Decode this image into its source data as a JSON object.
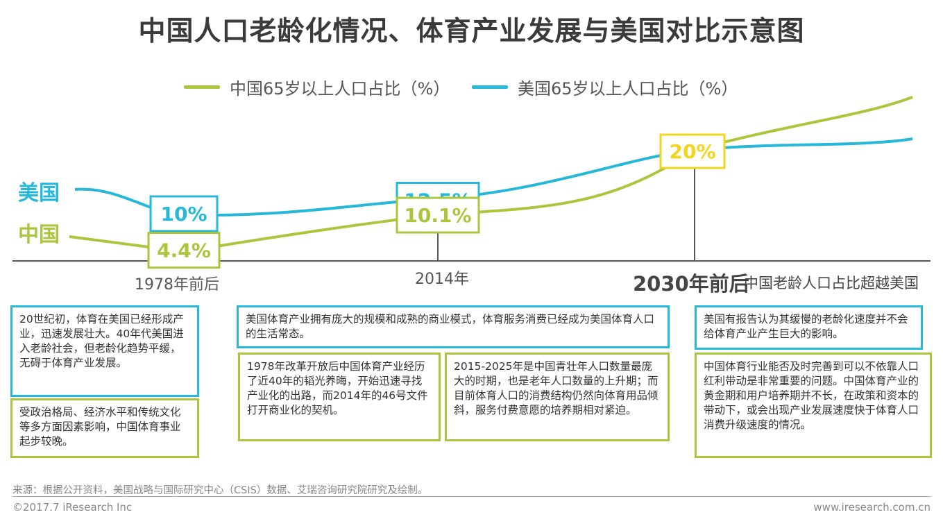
{
  "title": "中国人口老龄化情况、体育产业发展与美国对比示意图",
  "colors": {
    "china": "#a9c63c",
    "usa": "#25b8d8",
    "highlight": "#f2d51d"
  },
  "country_labels": {
    "usa": "美国",
    "china": "中国"
  },
  "chart_data": {
    "type": "line",
    "x": [
      "1978年前后",
      "2014年",
      "2030年前后"
    ],
    "series": [
      {
        "name": "中国65岁以上人口占比（%）",
        "values": [
          4.4,
          10.1,
          20
        ],
        "data_labels": [
          "4.4%",
          "10.1%",
          "20%"
        ]
      },
      {
        "name": "美国65岁以上人口占比（%）",
        "values": [
          10,
          12.5,
          20
        ],
        "data_labels": [
          "10%",
          "12.5%",
          "20%"
        ]
      }
    ],
    "x_note": "中国老龄人口占比超越美国",
    "grid": false,
    "legend_position": "top-center"
  },
  "boxes": {
    "us_1978": "20世纪初，体育在美国已经形成产业，迅速发展壮大。40年代美国进入老龄社会，但老龄化趋势平缓，无碍于体育产业发展。",
    "cn_1978": "受政治格局、经济水平和传统文化等多方面因素影响，中国体育事业起步较晚。",
    "us_2014": "美国体育产业拥有庞大的规模和成熟的商业模式，体育服务消费已经成为美国体育人口的生活常态。",
    "cn_2014_a": "1978年改革开放后中国体育产业经历了近40年的韬光养晦，开始迅速寻找产业化的出路，而2014年的46号文件打开商业化的契机。",
    "cn_2014_b": "2015-2025年是中国青壮年人口数量最庞大的时期，也是老年人口数量的上升期；而目前体育人口的消费结构仍然向体育用品倾斜，服务付费意愿的培养期相对紧迫。",
    "us_2030": "美国有报告认为其缓慢的老龄化速度并不会给体育产业产生巨大的影响。",
    "cn_2030": "中国体育行业能否及时完善到可以不依靠人口红利带动是非常重要的问题。中国体育产业的黄金期和用户培养期并不长，在政策和资本的带动下，或会出现产业发展速度快于体育人口消费升级速度的情况。"
  },
  "footer": {
    "source": "来源：根据公开资料，美国战略与国际研究中心（CSIS）数据、艾瑞咨询研究院研究及绘制。",
    "copyright": "©2017.7 iResearch Inc",
    "website": "www.iresearch.com.cn"
  }
}
